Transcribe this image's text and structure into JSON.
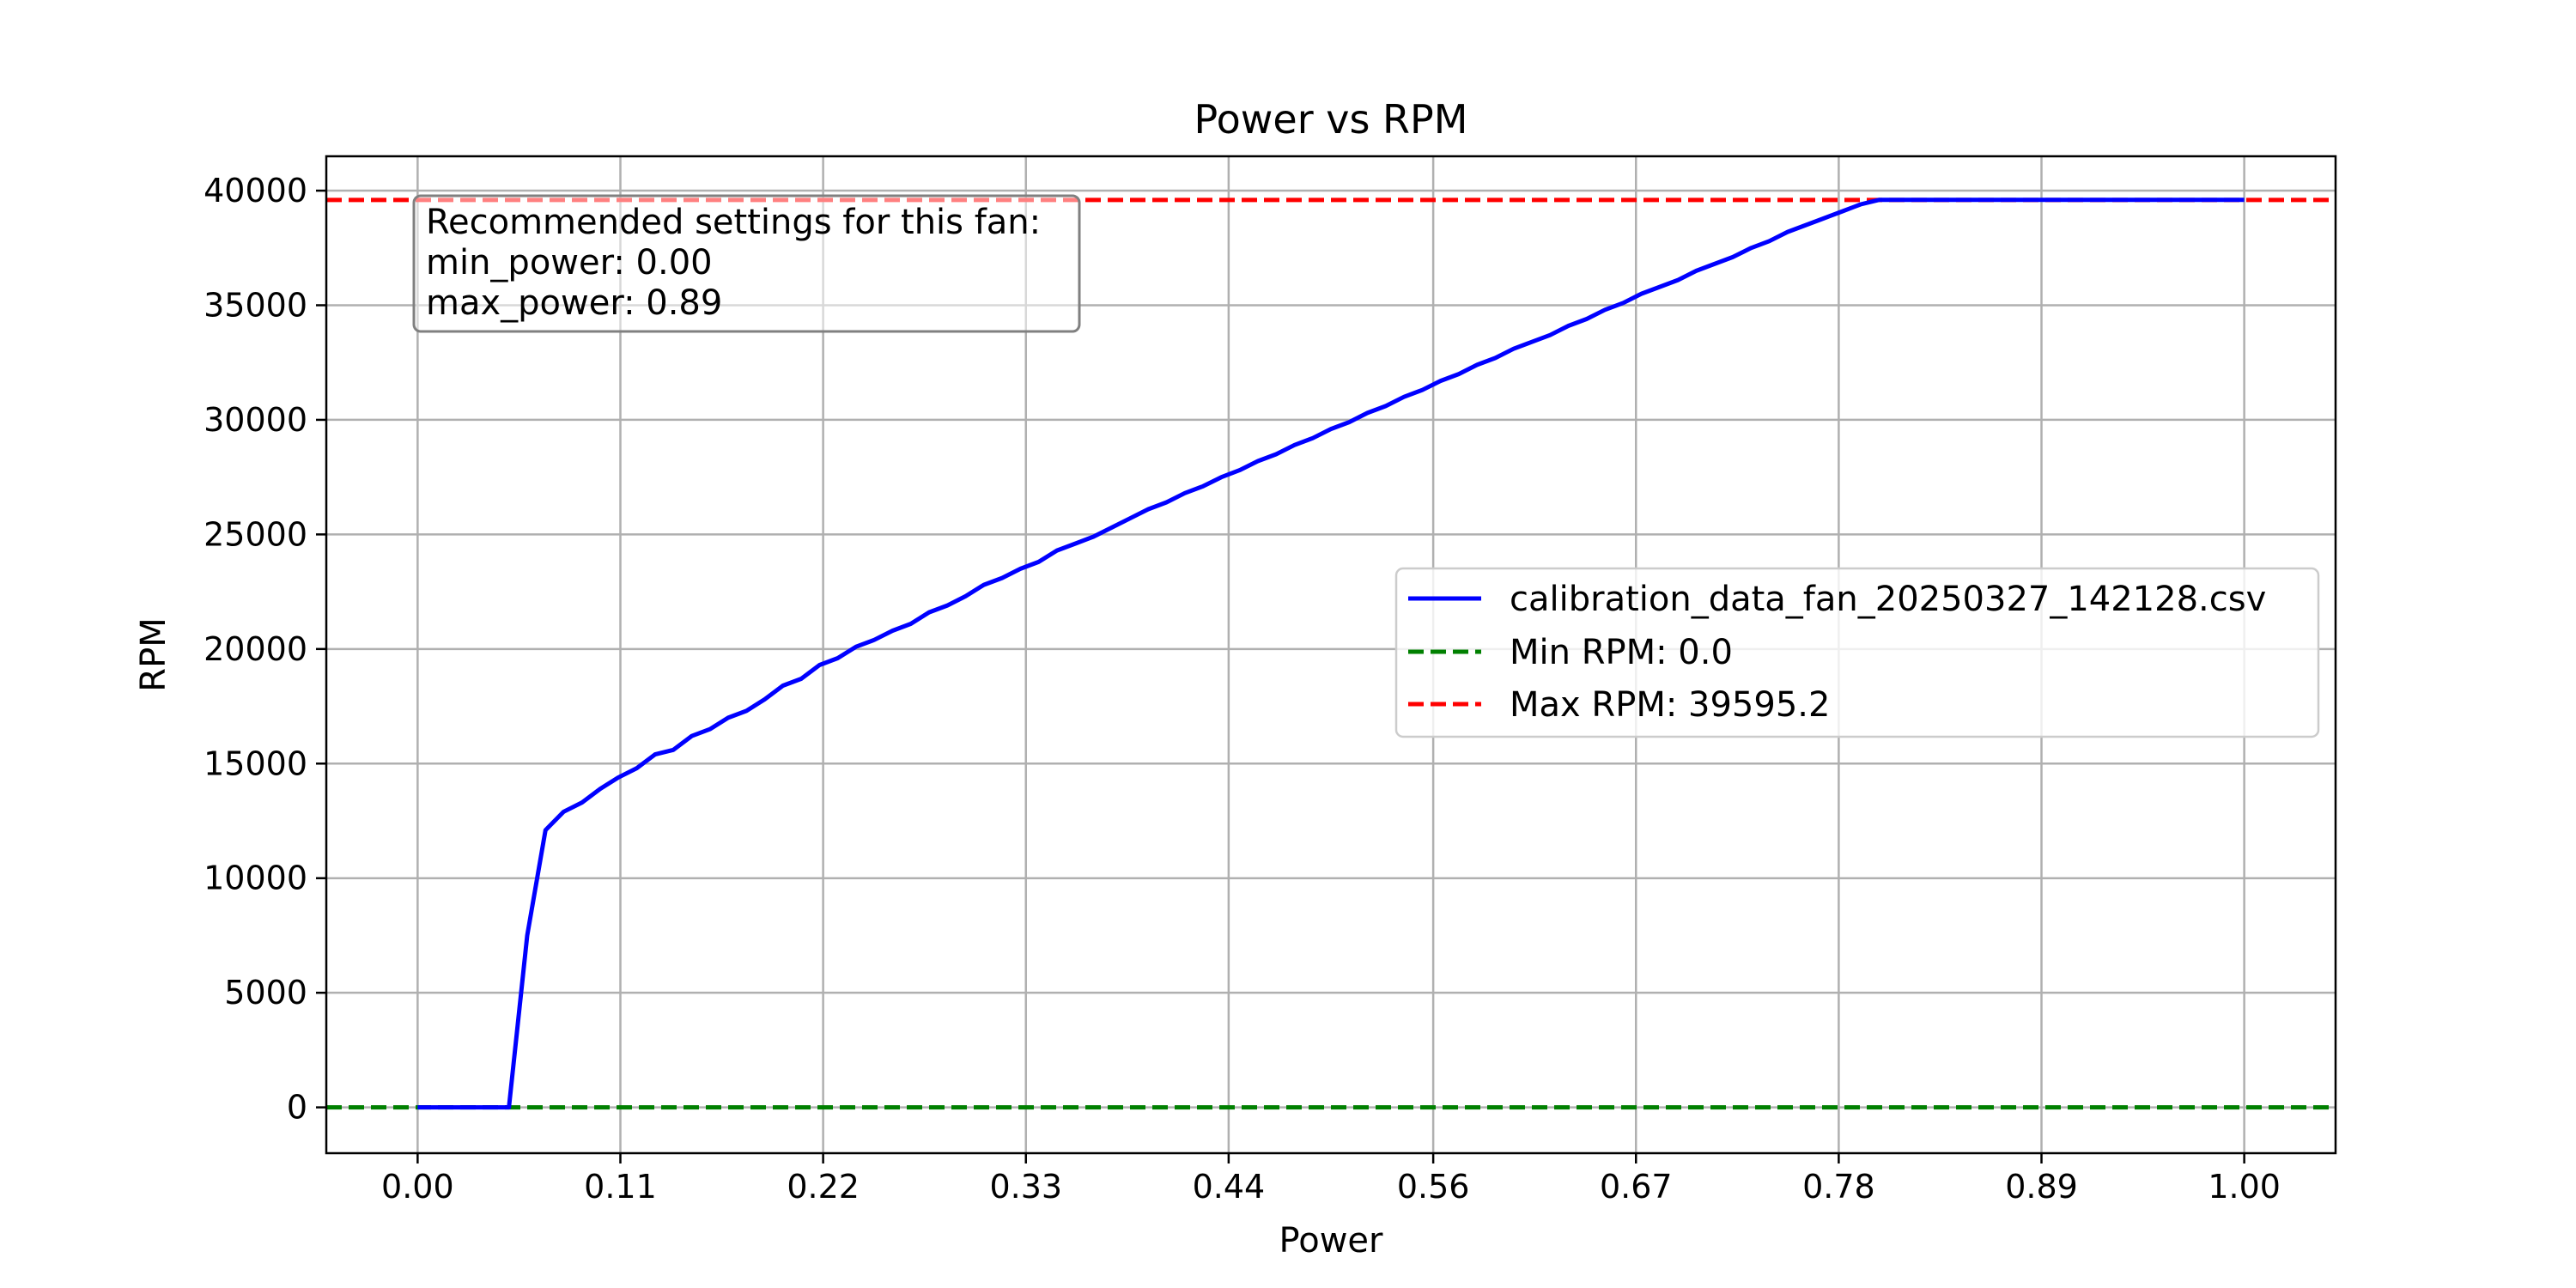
{
  "chart_data": {
    "type": "line",
    "title": "Power vs RPM",
    "xlabel": "Power",
    "ylabel": "RPM",
    "xlim": [
      -0.05,
      1.05
    ],
    "ylim": [
      -2000,
      41500
    ],
    "xticks": [
      0.0,
      0.111,
      0.222,
      0.333,
      0.444,
      0.556,
      0.667,
      0.778,
      0.889,
      1.0
    ],
    "xtick_labels": [
      "0.00",
      "0.11",
      "0.22",
      "0.33",
      "0.44",
      "0.56",
      "0.67",
      "0.78",
      "0.89",
      "1.00"
    ],
    "yticks": [
      0,
      5000,
      10000,
      15000,
      20000,
      25000,
      30000,
      35000,
      40000
    ],
    "ytick_labels": [
      "0",
      "5000",
      "10000",
      "15000",
      "20000",
      "25000",
      "30000",
      "35000",
      "40000"
    ],
    "grid": true,
    "legend_position": "center-right",
    "series": [
      {
        "name": "calibration_data_fan_20250327_142128.csv",
        "color": "#0000ff",
        "style": "solid",
        "x": [
          0.0,
          0.01,
          0.02,
          0.03,
          0.04,
          0.05,
          0.06,
          0.07,
          0.08,
          0.09,
          0.1,
          0.11,
          0.12,
          0.13,
          0.14,
          0.15,
          0.16,
          0.17,
          0.18,
          0.19,
          0.2,
          0.21,
          0.22,
          0.23,
          0.24,
          0.25,
          0.26,
          0.27,
          0.28,
          0.29,
          0.3,
          0.31,
          0.32,
          0.33,
          0.34,
          0.35,
          0.36,
          0.37,
          0.38,
          0.39,
          0.4,
          0.41,
          0.42,
          0.43,
          0.44,
          0.45,
          0.46,
          0.47,
          0.48,
          0.49,
          0.5,
          0.51,
          0.52,
          0.53,
          0.54,
          0.55,
          0.56,
          0.57,
          0.58,
          0.59,
          0.6,
          0.61,
          0.62,
          0.63,
          0.64,
          0.65,
          0.66,
          0.67,
          0.68,
          0.69,
          0.7,
          0.71,
          0.72,
          0.73,
          0.74,
          0.75,
          0.76,
          0.77,
          0.78,
          0.79,
          0.8,
          0.81,
          0.82,
          0.83,
          0.84,
          0.85,
          0.86,
          0.87,
          0.88,
          0.89,
          0.9,
          0.91,
          0.92,
          0.93,
          0.94,
          0.95,
          0.96,
          0.97,
          0.98,
          0.99,
          1.0
        ],
        "y": [
          0,
          0,
          0,
          0,
          0,
          0,
          7500,
          12100,
          12900,
          13300,
          13900,
          14400,
          14800,
          15400,
          15600,
          16200,
          16500,
          17000,
          17300,
          17800,
          18400,
          18700,
          19300,
          19600,
          20100,
          20400,
          20800,
          21100,
          21600,
          21900,
          22300,
          22800,
          23100,
          23500,
          23800,
          24300,
          24600,
          24900,
          25300,
          25700,
          26100,
          26400,
          26800,
          27100,
          27500,
          27800,
          28200,
          28500,
          28900,
          29200,
          29600,
          29900,
          30300,
          30600,
          31000,
          31300,
          31700,
          32000,
          32400,
          32700,
          33100,
          33400,
          33700,
          34100,
          34400,
          34800,
          35100,
          35500,
          35800,
          36100,
          36500,
          36800,
          37100,
          37500,
          37800,
          38200,
          38500,
          38800,
          39100,
          39400,
          39595,
          39595,
          39595,
          39595,
          39595,
          39595,
          39595,
          39595,
          39595,
          39595,
          39595,
          39595,
          39595,
          39595,
          39595,
          39595,
          39595,
          39595,
          39595,
          39595,
          39595
        ]
      },
      {
        "name": "Min RPM: 0.0",
        "color": "#008000",
        "style": "dashed",
        "hline": 0.0
      },
      {
        "name": "Max RPM: 39595.2",
        "color": "#ff0000",
        "style": "dashed",
        "hline": 39595.2
      }
    ],
    "annotation": {
      "lines": [
        "Recommended settings for this fan:",
        "min_power: 0.00",
        "max_power: 0.89"
      ]
    }
  }
}
